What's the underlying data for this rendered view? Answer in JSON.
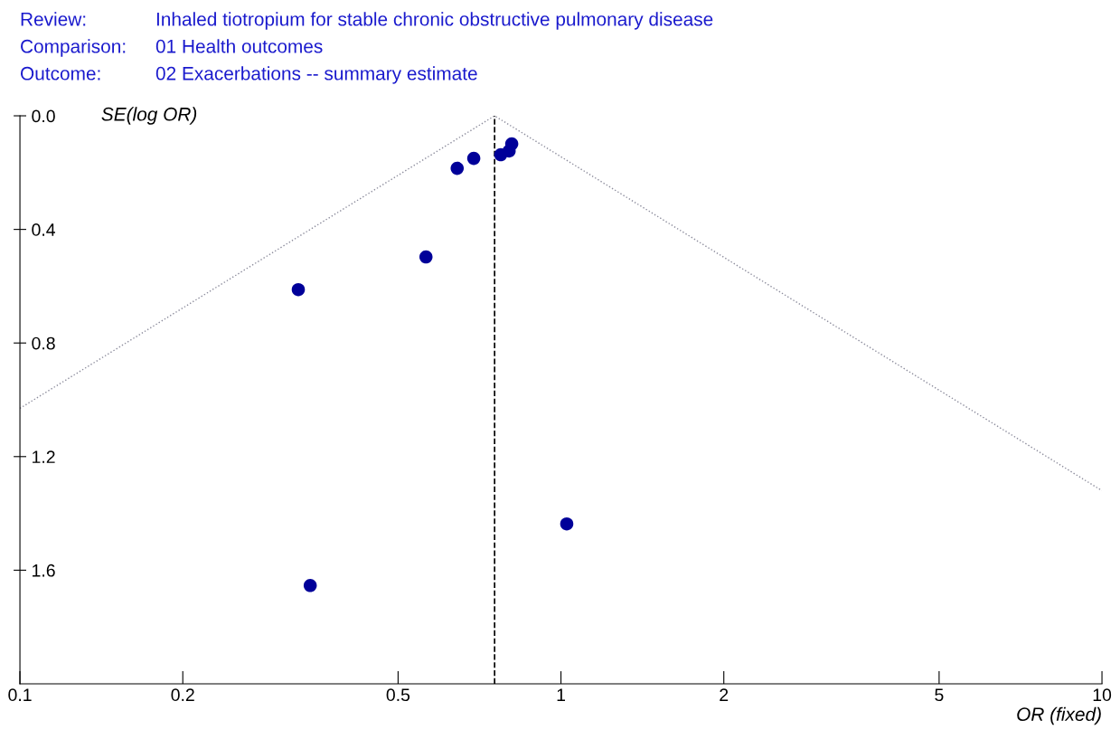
{
  "chart_data": {
    "type": "scatter",
    "annotations": [
      "Review:",
      "Inhaled tiotropium for stable chronic obstructive pulmonary disease",
      "Comparison:",
      "01 Health outcomes",
      "Outcome:",
      "02 Exacerbations -- summary estimate"
    ],
    "xlabel": "OR (fixed)",
    "ylabel": "SE(log OR)",
    "log": "x",
    "grid": false,
    "marker": "circle",
    "xlim": [
      0.1,
      10
    ],
    "xticks": [
      0.1,
      0.2,
      0.5,
      1,
      2,
      5,
      10
    ],
    "ylim": [
      2.0,
      0.0
    ],
    "yticks": [
      {
        "value": 0,
        "label": "0.0"
      },
      {
        "value": 0.4,
        "label": "0.4"
      },
      {
        "value": 0.8,
        "label": "0.8"
      },
      {
        "value": 1.2,
        "label": "1.2"
      },
      {
        "value": 1.6,
        "label": "1.6"
      }
    ],
    "series": [
      {
        "color": "#000099",
        "x": [
          0.327,
          0.344,
          0.563,
          0.643,
          0.69,
          0.774,
          0.802,
          0.811,
          1.025
        ],
        "values": [
          0.612,
          1.654,
          0.497,
          0.185,
          0.15,
          0.137,
          0.124,
          0.099,
          1.437
        ]
      },
      {
        "type": "line",
        "color": "#8c8c9c",
        "line_style": "dotted",
        "marker": "none",
        "x": [
          0.1,
          0.754,
          10
        ],
        "values": [
          1.03,
          0.0,
          1.32
        ]
      }
    ],
    "ref_lines": [
      {
        "axis": "x",
        "value": 0.754,
        "color": "#000000",
        "line_style": "dashed"
      }
    ]
  }
}
